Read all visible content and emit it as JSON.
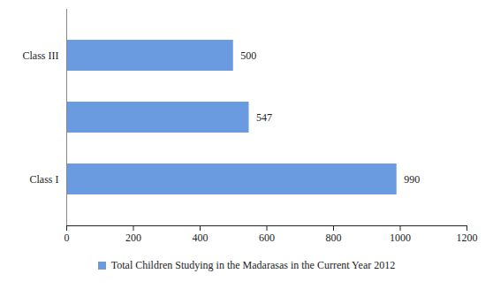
{
  "chart_data": {
    "type": "bar",
    "orientation": "horizontal",
    "categories": [
      "Class I",
      null,
      "Class III"
    ],
    "series": [
      {
        "name": "Total Children Studying in the Madarasas in the Current Year 2012",
        "color": "#6a9be0",
        "values": [
          990,
          547,
          500
        ]
      }
    ],
    "xlim": [
      0,
      1200
    ],
    "xticks": [
      0,
      200,
      400,
      600,
      800,
      1000,
      1200
    ],
    "grid": false,
    "data_labels": true,
    "legend": "bottom"
  }
}
